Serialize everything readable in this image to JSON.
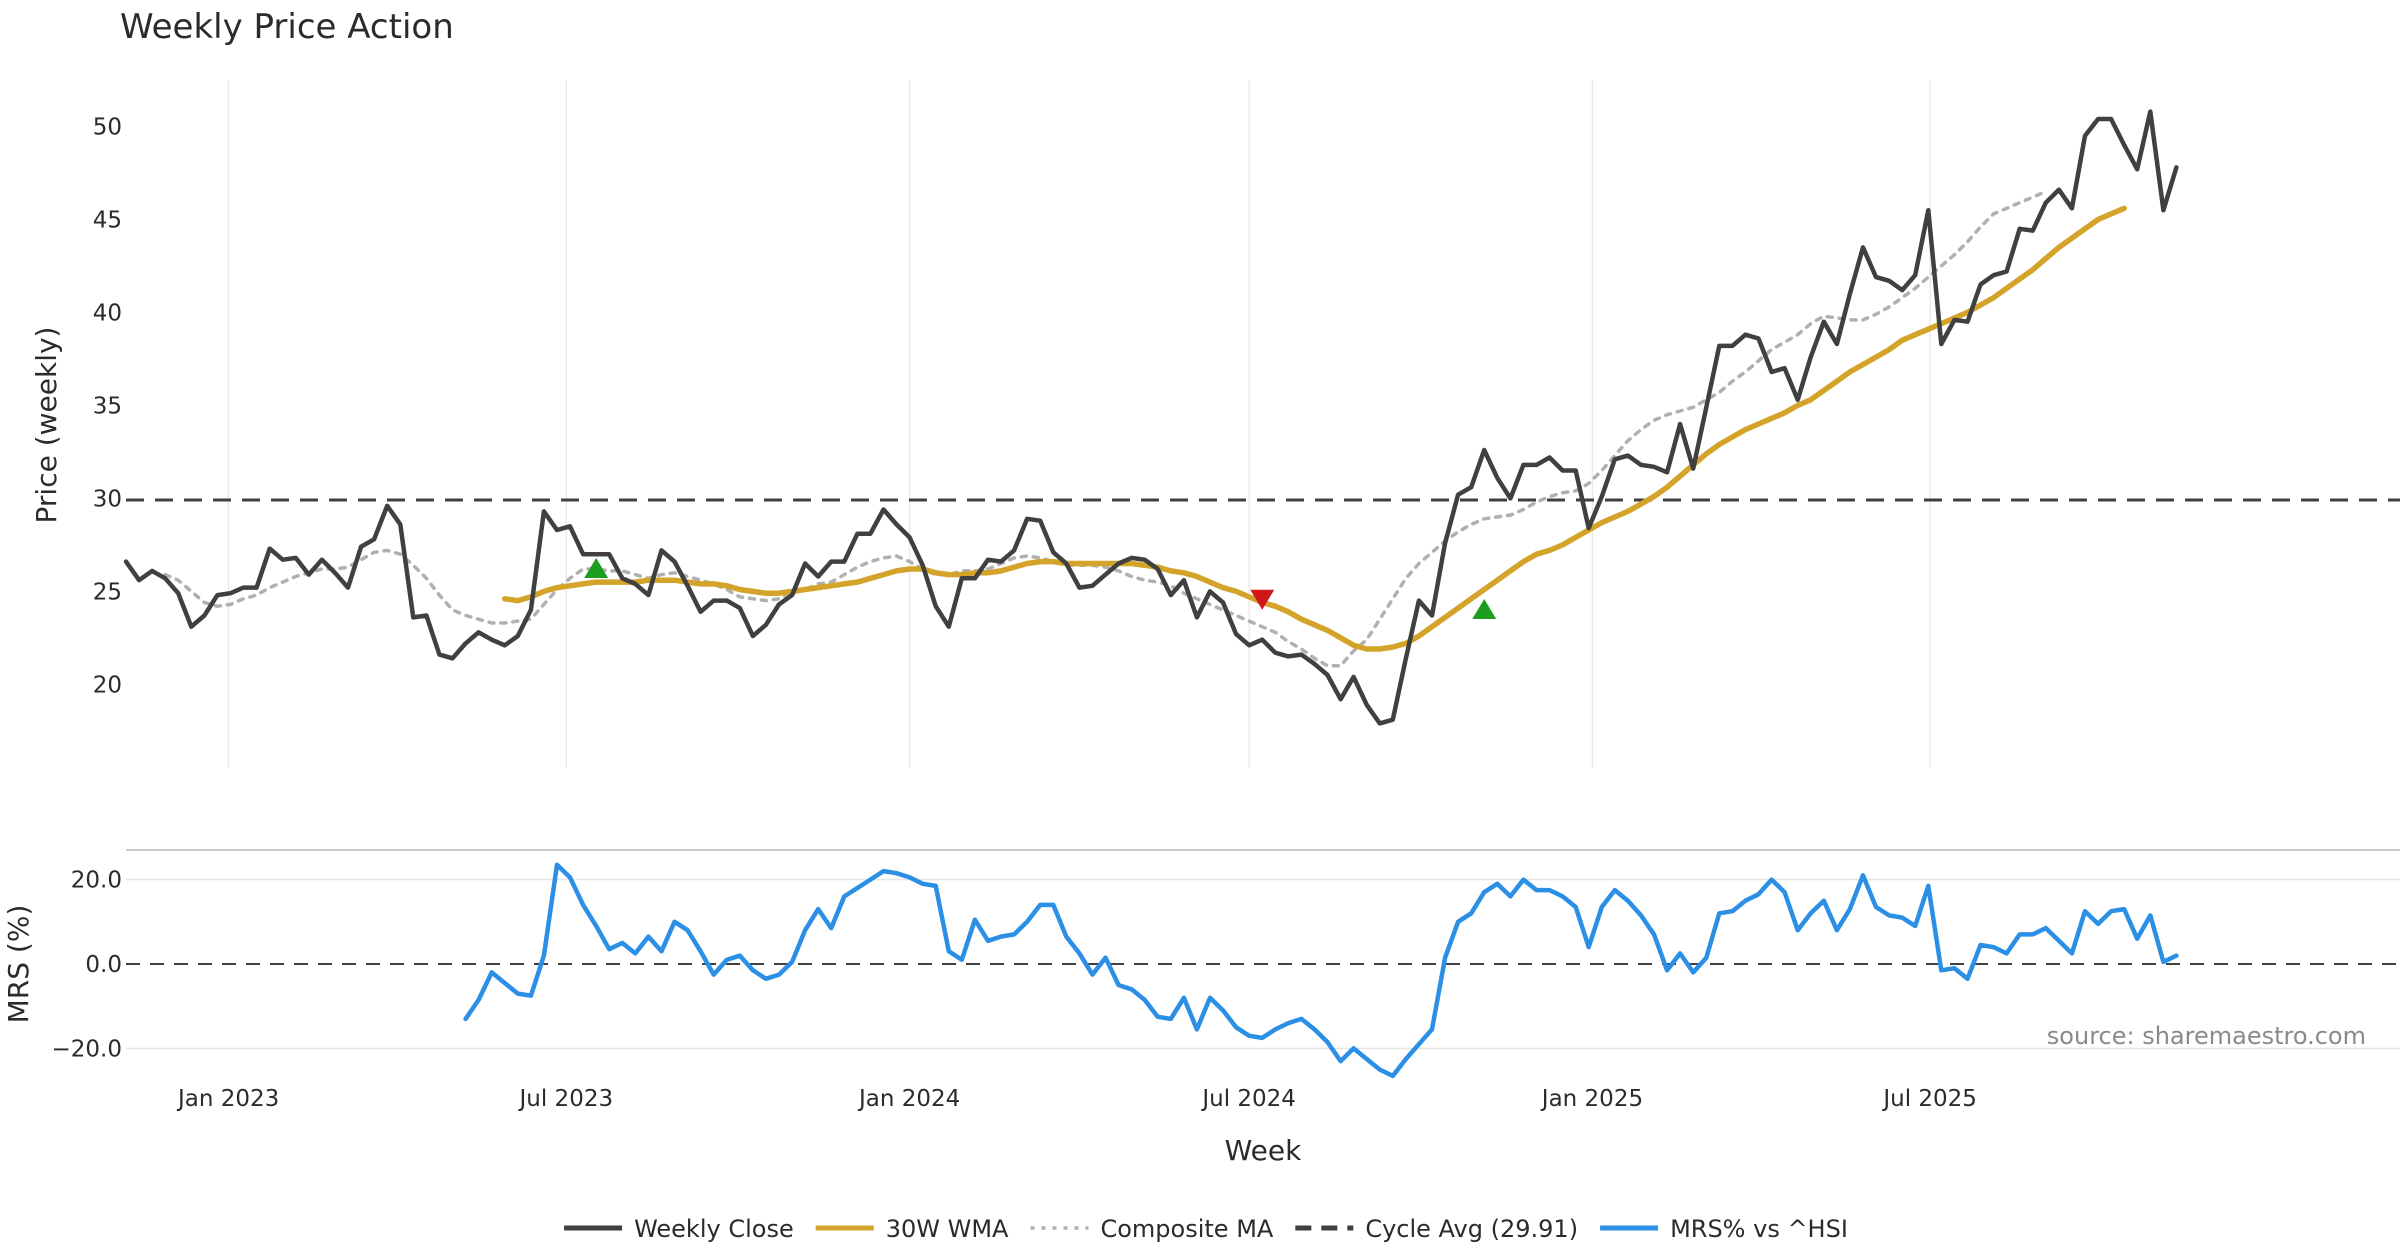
{
  "chart_data": {
    "type": "line",
    "title": "Weekly Price Action",
    "xlabel": "Week",
    "x_ticks": [
      "Jan 2023",
      "Jul 2023",
      "Jan 2024",
      "Jul 2024",
      "Jan 2025",
      "Jul 2025"
    ],
    "top_panel": {
      "ylabel": "Price (weekly)",
      "ylim": [
        15.5,
        52.5
      ],
      "y_ticks": [
        "20",
        "25",
        "30",
        "35",
        "40",
        "45",
        "50"
      ],
      "grid": "vertical",
      "start_date": "2022-11-07",
      "series": [
        {
          "name": "Weekly Close",
          "color": "#404040",
          "style": "solid",
          "values": [
            26.6,
            25.6,
            26.1,
            25.7,
            24.9,
            23.1,
            23.7,
            24.8,
            24.9,
            25.2,
            25.2,
            27.3,
            26.7,
            26.8,
            25.9,
            26.7,
            26.0,
            25.2,
            27.4,
            27.8,
            29.6,
            28.6,
            23.6,
            23.7,
            21.6,
            21.4,
            22.2,
            22.8,
            22.4,
            22.1,
            22.6,
            24.0,
            29.3,
            28.3,
            28.5,
            27.0,
            27.0,
            27.0,
            25.7,
            25.4,
            24.8,
            27.2,
            26.6,
            25.3,
            23.9,
            24.5,
            24.5,
            24.1,
            22.6,
            23.2,
            24.3,
            24.8,
            26.5,
            25.8,
            26.6,
            26.6,
            28.1,
            28.1,
            29.4,
            28.6,
            27.9,
            26.4,
            24.2,
            23.1,
            25.7,
            25.7,
            26.7,
            26.6,
            27.2,
            28.9,
            28.8,
            27.1,
            26.5,
            25.2,
            25.3,
            25.9,
            26.5,
            26.8,
            26.7,
            26.2,
            24.8,
            25.6,
            23.6,
            25.0,
            24.4,
            22.7,
            22.1,
            22.4,
            21.7,
            21.5,
            21.6,
            21.1,
            20.5,
            19.2,
            20.4,
            18.9,
            17.9,
            18.1,
            21.4,
            24.5,
            23.7,
            27.6,
            30.2,
            30.6,
            32.6,
            31.1,
            30.0,
            31.8,
            31.8,
            32.2,
            31.5,
            31.5,
            28.4,
            30.1,
            32.1,
            32.3,
            31.8,
            31.7,
            31.4,
            34.0,
            31.6,
            34.9,
            38.2,
            38.2,
            38.8,
            38.6,
            36.8,
            37.0,
            35.3,
            37.6,
            39.5,
            38.3,
            41.0,
            43.5,
            41.9,
            41.7,
            41.2,
            42.0,
            45.5,
            38.3,
            39.6,
            39.5,
            41.5,
            42.0,
            42.2,
            44.5,
            44.4,
            45.9,
            46.6,
            45.6,
            49.5,
            50.4,
            50.4,
            49.0,
            47.7,
            50.8,
            45.5,
            47.8
          ]
        },
        {
          "name": "30W WMA",
          "color": "#d4a42a",
          "style": "solid",
          "start_index": 29,
          "values": [
            24.6,
            24.5,
            24.7,
            25.0,
            25.2,
            25.3,
            25.4,
            25.5,
            25.5,
            25.5,
            25.5,
            25.6,
            25.6,
            25.6,
            25.5,
            25.4,
            25.4,
            25.3,
            25.1,
            25.0,
            24.9,
            24.9,
            25.0,
            25.1,
            25.2,
            25.3,
            25.4,
            25.5,
            25.7,
            25.9,
            26.1,
            26.2,
            26.2,
            26.0,
            25.9,
            25.9,
            26.0,
            26.0,
            26.1,
            26.3,
            26.5,
            26.6,
            26.6,
            26.5,
            26.5,
            26.5,
            26.5,
            26.5,
            26.5,
            26.4,
            26.3,
            26.1,
            26.0,
            25.8,
            25.5,
            25.2,
            25.0,
            24.7,
            24.4,
            24.2,
            23.9,
            23.5,
            23.2,
            22.9,
            22.5,
            22.1,
            21.9,
            21.9,
            22.0,
            22.2,
            22.6,
            23.1,
            23.6,
            24.1,
            24.6,
            25.1,
            25.6,
            26.1,
            26.6,
            27.0,
            27.2,
            27.5,
            27.9,
            28.3,
            28.7,
            29.0,
            29.3,
            29.7,
            30.1,
            30.6,
            31.2,
            31.8,
            32.4,
            32.9,
            33.3,
            33.7,
            34.0,
            34.3,
            34.6,
            35.0,
            35.3,
            35.8,
            36.3,
            36.8,
            37.2,
            37.6,
            38.0,
            38.5,
            38.8,
            39.1,
            39.4,
            39.7,
            40.0,
            40.4,
            40.8,
            41.3,
            41.8,
            42.3,
            42.9,
            43.5,
            44.0,
            44.5,
            45.0,
            45.3,
            45.6
          ]
        },
        {
          "name": "Composite MA",
          "color": "#b0b0b0",
          "style": "dotted",
          "start_index": 3,
          "values": [
            25.9,
            25.6,
            25.0,
            24.4,
            24.2,
            24.3,
            24.6,
            24.8,
            25.2,
            25.5,
            25.8,
            26.0,
            26.2,
            26.2,
            26.3,
            26.7,
            27.1,
            27.2,
            27.0,
            26.4,
            25.7,
            24.8,
            24.0,
            23.7,
            23.5,
            23.3,
            23.3,
            23.4,
            23.5,
            24.3,
            25.1,
            25.7,
            26.2,
            26.2,
            26.1,
            26.1,
            25.9,
            25.7,
            25.9,
            26.0,
            25.8,
            25.6,
            25.4,
            25.1,
            24.7,
            24.6,
            24.5,
            24.6,
            24.9,
            25.1,
            25.4,
            25.5,
            25.9,
            26.3,
            26.6,
            26.8,
            26.9,
            26.6,
            26.2,
            25.9,
            25.9,
            26.1,
            26.1,
            26.2,
            26.5,
            26.8,
            26.9,
            26.8,
            26.6,
            26.4,
            26.4,
            26.4,
            26.3,
            26.1,
            25.8,
            25.6,
            25.5,
            25.3,
            24.9,
            24.6,
            24.3,
            24.0,
            23.7,
            23.4,
            23.1,
            22.8,
            22.3,
            21.9,
            21.4,
            21.0,
            21.0,
            21.8,
            22.4,
            23.5,
            24.6,
            25.7,
            26.5,
            27.1,
            27.7,
            28.2,
            28.6,
            28.9,
            29.0,
            29.1,
            29.4,
            29.8,
            30.1,
            30.3,
            30.4,
            30.8,
            31.5,
            32.3,
            33.1,
            33.7,
            34.2,
            34.5,
            34.7,
            34.9,
            35.3,
            35.7,
            36.3,
            36.8,
            37.4,
            38.0,
            38.4,
            38.8,
            39.4,
            39.8,
            39.7,
            39.6,
            39.6,
            39.9,
            40.3,
            40.8,
            41.3,
            41.9,
            42.5,
            43.1,
            43.8,
            44.6,
            45.3,
            45.6,
            45.9,
            46.2,
            46.5
          ]
        },
        {
          "name": "Cycle Avg (29.91)",
          "color": "#404040",
          "style": "dashed",
          "value": 29.91
        }
      ],
      "signals": [
        {
          "type": "buy",
          "index": 36,
          "value": 26.2,
          "color": "#1e9e1e"
        },
        {
          "type": "sell",
          "index": 87,
          "value": 24.6,
          "color": "#d01818"
        },
        {
          "type": "buy",
          "index": 104,
          "value": 24.0,
          "color": "#1e9e1e"
        }
      ]
    },
    "bottom_panel": {
      "ylabel": "MRS (%)",
      "ylim": [
        -27,
        27
      ],
      "y_ticks": [
        "20.0",
        "0.0",
        "−20.0"
      ],
      "series": [
        {
          "name": "MRS% vs ^HSI",
          "color": "#2b8fe6",
          "start_index": 26,
          "values": [
            -13.0,
            -8.5,
            -2.0,
            -4.5,
            -7.0,
            -7.5,
            2.0,
            23.5,
            20.5,
            14.0,
            9.0,
            3.5,
            5.0,
            2.5,
            6.5,
            3.0,
            10.0,
            8.0,
            3.0,
            -2.5,
            1.0,
            2.0,
            -1.5,
            -3.5,
            -2.5,
            0.5,
            8.0,
            13.0,
            8.5,
            16.0,
            18.0,
            20.0,
            22.0,
            21.5,
            20.5,
            19.0,
            18.5,
            3.0,
            1.0,
            10.5,
            5.5,
            6.5,
            7.0,
            10.0,
            14.0,
            14.0,
            6.5,
            2.5,
            -2.5,
            1.5,
            -5.0,
            -6.0,
            -8.5,
            -12.5,
            -13.0,
            -8.0,
            -15.5,
            -8.0,
            -11.0,
            -15.0,
            -17.0,
            -17.5,
            -15.5,
            -14.0,
            -13.0,
            -15.5,
            -18.5,
            -23.0,
            -20.0,
            -22.5,
            -25.0,
            -26.5,
            -22.5,
            -19.0,
            -15.5,
            1.5,
            10.0,
            12.0,
            17.0,
            19.0,
            16.0,
            20.0,
            17.5,
            17.5,
            16.0,
            13.5,
            4.0,
            13.5,
            17.5,
            15.0,
            11.5,
            7.0,
            -1.5,
            2.5,
            -2.0,
            1.5,
            12.0,
            12.5,
            15.0,
            16.5,
            20.0,
            17.0,
            8.0,
            12.0,
            15.0,
            8.0,
            13.0,
            21.0,
            13.5,
            11.5,
            11.0,
            9.0,
            18.5,
            -1.5,
            -1.0,
            -3.5,
            4.5,
            4.0,
            2.5,
            7.0,
            7.0,
            8.5,
            5.5,
            2.5,
            12.5,
            9.5,
            12.5,
            13.0,
            6.0,
            11.5,
            0.5,
            2.0
          ]
        },
        {
          "name": "zero",
          "color": "#404040",
          "style": "dashed",
          "value": 0
        }
      ]
    },
    "legend": {
      "placement": "bottom-center",
      "entries": [
        {
          "label": "Weekly Close",
          "color": "#404040",
          "style": "solid"
        },
        {
          "label": "30W WMA",
          "color": "#d4a42a",
          "style": "solid"
        },
        {
          "label": "Composite MA",
          "color": "#b0b0b0",
          "style": "dotted"
        },
        {
          "label": "Cycle Avg (29.91)",
          "color": "#404040",
          "style": "dashed"
        },
        {
          "label": "MRS% vs ^HSI",
          "color": "#2b8fe6",
          "style": "solid"
        }
      ]
    },
    "annotation": "source: sharemaestro.com"
  }
}
